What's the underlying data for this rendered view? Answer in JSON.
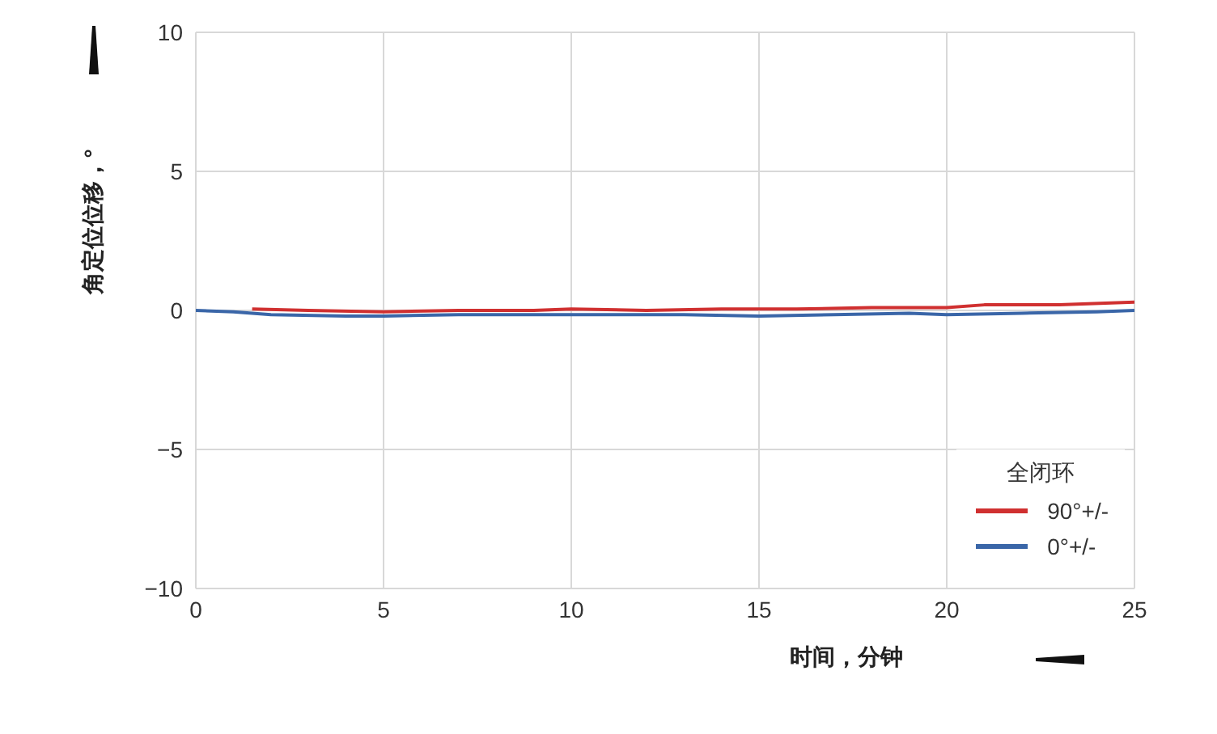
{
  "chart_data": {
    "type": "line",
    "xlabel": "时间，分钟",
    "ylabel": "角定位位移，°",
    "legend_title": "全闭环",
    "series": [
      {
        "name": "90°+/-",
        "color": "#d03030",
        "x": [
          1.5,
          3,
          5,
          7,
          9,
          10,
          12,
          14,
          16,
          18,
          20,
          21,
          23,
          25
        ],
        "values": [
          0.05,
          0,
          -0.05,
          0,
          0,
          0.05,
          0,
          0.05,
          0.05,
          0.1,
          0.1,
          0.2,
          0.2,
          0.3
        ]
      },
      {
        "name": "0°+/-",
        "color": "#3a66a8",
        "x": [
          0,
          1,
          2,
          4,
          5,
          7,
          9,
          11,
          13,
          15,
          17,
          19,
          20,
          22,
          24,
          25
        ],
        "values": [
          0,
          -0.05,
          -0.15,
          -0.2,
          -0.2,
          -0.15,
          -0.15,
          -0.15,
          -0.15,
          -0.2,
          -0.15,
          -0.1,
          -0.15,
          -0.1,
          -0.05,
          0
        ]
      }
    ],
    "xlim": [
      0,
      25
    ],
    "xticks": [
      0,
      5,
      10,
      15,
      20,
      25
    ],
    "ylim": [
      -10,
      10
    ],
    "yticks": [
      -10,
      -5,
      0,
      5,
      10
    ],
    "grid": true,
    "legend": "bottom right"
  }
}
